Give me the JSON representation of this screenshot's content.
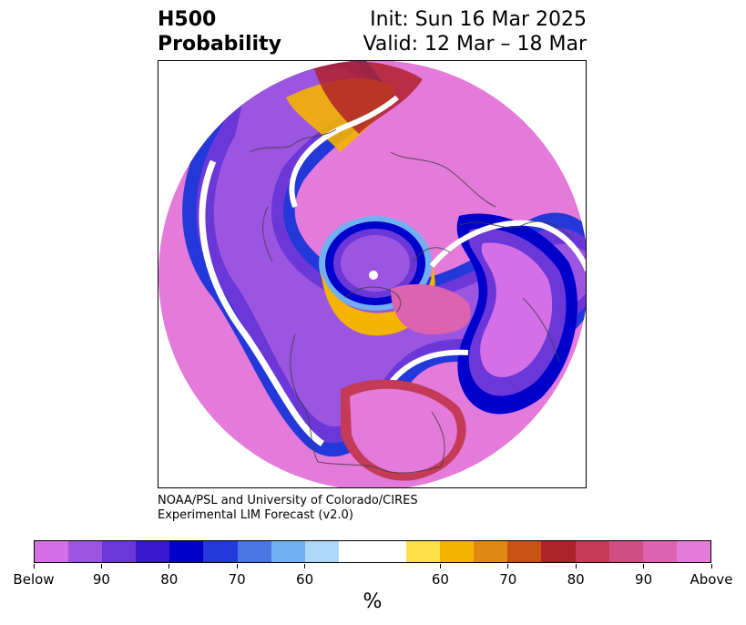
{
  "header": {
    "title_line1": "H500",
    "title_line2": "Probability",
    "init_text": "Init: Sun 16 Mar 2025",
    "valid_text": "Valid: 12 Mar – 18 Mar"
  },
  "credit": {
    "line1": "NOAA/PSL and University of Colorado/CIRES",
    "line2": "Experimental LIM Forecast (v2.0)"
  },
  "colorbar": {
    "unit": "%",
    "colors": [
      "#d46fe8",
      "#9c55e0",
      "#6b37d8",
      "#3a18d2",
      "#0000cc",
      "#2338d8",
      "#4a76e4",
      "#72aff0",
      "#aed8fa",
      "#ffffff",
      "#ffe04a",
      "#f4b400",
      "#e08814",
      "#c75216",
      "#b0222a",
      "#c43a57",
      "#cf4f84",
      "#dd62b0",
      "#e47ad9"
    ],
    "tick_labels": [
      "Below",
      "90",
      "80",
      "70",
      "60",
      "60",
      "70",
      "80",
      "90",
      "Above"
    ]
  },
  "map": {
    "projection": "polar stereographic (North Pole)",
    "field_colors": {
      "below_strong": "#d46fe8",
      "below": "#9c55e0",
      "below_core": "#0000cc",
      "neutral": "#ffffff",
      "above_weak": "#f4b400",
      "above_mid": "#b0222a",
      "above_strong": "#e47ad9"
    }
  }
}
